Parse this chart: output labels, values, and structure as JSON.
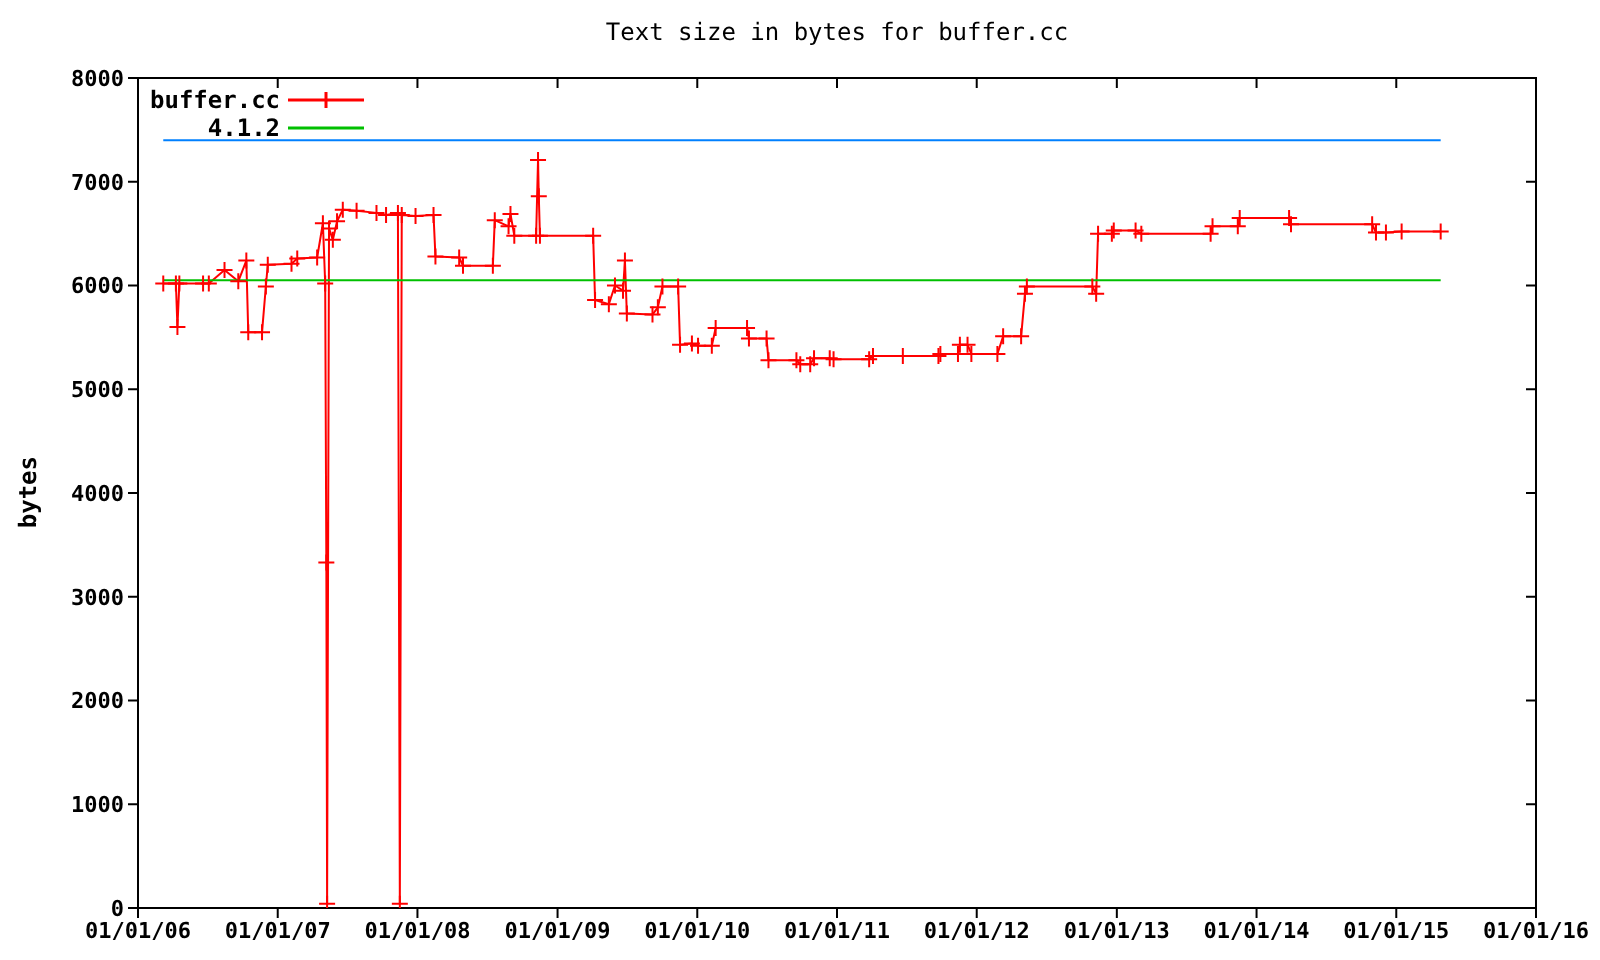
{
  "chart_data": {
    "type": "line",
    "title": "Text size in bytes for buffer.cc",
    "ylabel": "bytes",
    "xlim": [
      "2006-01-01",
      "2016-01-01"
    ],
    "xticks": [
      {
        "value": "2006-01-01",
        "label": "01/01/06"
      },
      {
        "value": "2007-01-01",
        "label": "01/01/07"
      },
      {
        "value": "2008-01-01",
        "label": "01/01/08"
      },
      {
        "value": "2009-01-01",
        "label": "01/01/09"
      },
      {
        "value": "2010-01-01",
        "label": "01/01/10"
      },
      {
        "value": "2011-01-01",
        "label": "01/01/11"
      },
      {
        "value": "2012-01-01",
        "label": "01/01/12"
      },
      {
        "value": "2013-01-01",
        "label": "01/01/13"
      },
      {
        "value": "2014-01-01",
        "label": "01/01/14"
      },
      {
        "value": "2015-01-01",
        "label": "01/01/15"
      },
      {
        "value": "2016-01-01",
        "label": "01/01/16"
      }
    ],
    "ylim": [
      0,
      8000
    ],
    "yticks": [
      0,
      1000,
      2000,
      3000,
      4000,
      5000,
      6000,
      7000,
      8000
    ],
    "legend": "top left",
    "series": [
      {
        "name": "buffer.cc",
        "color": "#ff0000",
        "marker": "cross",
        "x": [
          "2006-03-08",
          "2006-04-10",
          "2006-04-14",
          "2006-04-19",
          "2006-06-20",
          "2006-07-05",
          "2006-08-15",
          "2006-09-20",
          "2006-10-11",
          "2006-10-16",
          "2006-11-21",
          "2006-12-01",
          "2006-12-06",
          "2007-02-06",
          "2007-02-21",
          "2007-04-14",
          "2007-04-29",
          "2007-05-05",
          "2007-05-08",
          "2007-05-10",
          "2007-05-15",
          "2007-05-25",
          "2007-06-05",
          "2007-06-20",
          "2007-07-26",
          "2007-09-16",
          "2007-10-11",
          "2007-11-11",
          "2007-11-16",
          "2007-11-21",
          "2007-12-27",
          "2008-02-12",
          "2008-02-17",
          "2008-04-19",
          "2008-04-29",
          "2008-07-16",
          "2008-07-21",
          "2008-08-26",
          "2008-08-31",
          "2008-09-10",
          "2008-11-06",
          "2008-11-11",
          "2008-11-13",
          "2008-11-16",
          "2009-04-04",
          "2009-04-09",
          "2009-05-15",
          "2009-05-31",
          "2009-06-21",
          "2009-06-26",
          "2009-07-01",
          "2009-09-06",
          "2009-09-20",
          "2009-10-02",
          "2009-11-12",
          "2009-11-17",
          "2009-12-18",
          "2010-01-03",
          "2010-02-08",
          "2010-02-18",
          "2010-05-11",
          "2010-05-16",
          "2010-07-01",
          "2010-07-06",
          "2010-09-17",
          "2010-09-27",
          "2010-10-23",
          "2010-11-02",
          "2010-12-13",
          "2010-12-23",
          "2011-03-26",
          "2011-04-05",
          "2011-06-22",
          "2011-09-23",
          "2011-09-28",
          "2011-11-13",
          "2011-11-18",
          "2011-12-08",
          "2011-12-18",
          "2012-02-24",
          "2012-03-10",
          "2012-04-26",
          "2012-05-06",
          "2012-05-11",
          "2012-10-29",
          "2012-11-08",
          "2012-11-13",
          "2012-12-19",
          "2012-12-24",
          "2013-02-19",
          "2013-03-06",
          "2013-09-03",
          "2013-09-08",
          "2013-11-13",
          "2013-11-18",
          "2014-03-27",
          "2014-04-01",
          "2014-10-30",
          "2014-11-09",
          "2014-12-05",
          "2015-01-15",
          "2015-04-27"
        ],
        "values": [
          6020,
          6020,
          5600,
          6020,
          6020,
          6020,
          6150,
          6040,
          6240,
          5550,
          5550,
          5990,
          6200,
          6210,
          6260,
          6270,
          6600,
          6020,
          3330,
          40,
          6550,
          6440,
          6620,
          6730,
          6720,
          6700,
          6680,
          6700,
          40,
          6680,
          6670,
          6680,
          6280,
          6270,
          6190,
          6190,
          6630,
          6570,
          6690,
          6480,
          6480,
          7210,
          6860,
          6480,
          6480,
          5860,
          5820,
          6000,
          5950,
          6240,
          5730,
          5720,
          5790,
          5990,
          5990,
          5430,
          5440,
          5420,
          5420,
          5590,
          5590,
          5490,
          5490,
          5280,
          5280,
          5240,
          5240,
          5300,
          5300,
          5290,
          5290,
          5320,
          5320,
          5320,
          5340,
          5340,
          5430,
          5430,
          5340,
          5340,
          5510,
          5510,
          5920,
          5990,
          5990,
          5920,
          6500,
          6500,
          6530,
          6530,
          6500,
          6500,
          6570,
          6570,
          6650,
          6650,
          6590,
          6590,
          6510,
          6510,
          6520,
          6520
        ]
      },
      {
        "name": "4.1.2",
        "color": "#00c000",
        "x": [
          "2006-03-08",
          "2015-04-27"
        ],
        "values": [
          6050,
          6050
        ]
      },
      {
        "color": "#0080ff",
        "x": [
          "2006-03-08",
          "2015-04-27"
        ],
        "values": [
          7400,
          7400
        ]
      }
    ]
  }
}
